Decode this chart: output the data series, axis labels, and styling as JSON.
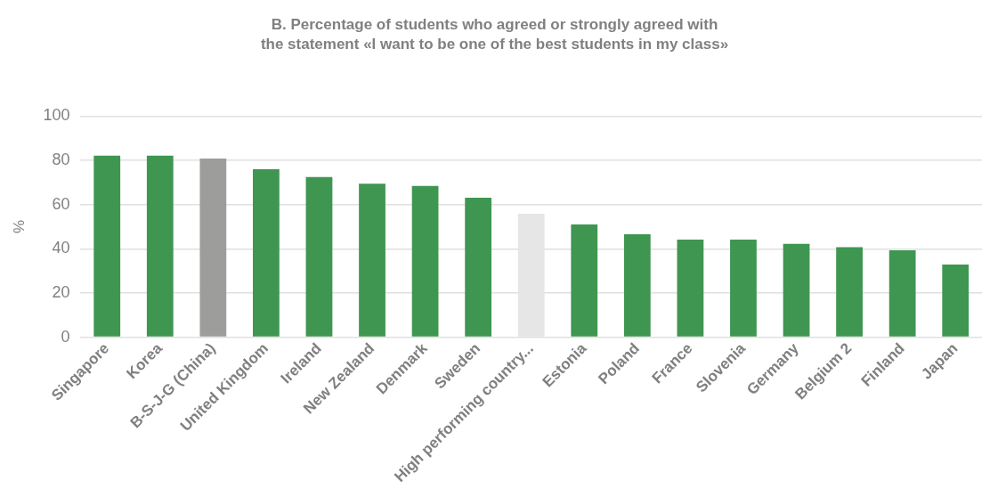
{
  "chart_data": {
    "type": "bar",
    "title": "B. Percentage of students who agreed or strongly agreed with\nthe statement «I want to be one of the best students in my class»",
    "ylabel": "%",
    "categories": [
      "Singapore",
      "Korea",
      "B-S-J-G (China)",
      "United Kingdom",
      "Ireland",
      "New Zealand",
      "Denmark",
      "Sweden",
      "High performing country...",
      "Estonia",
      "Poland",
      "France",
      "Slovenia",
      "Germany",
      "Belgium 2",
      "Finland",
      "Japan"
    ],
    "values": [
      82.2,
      82.2,
      80.8,
      76,
      72.5,
      69.5,
      68.5,
      63.1,
      55.9,
      51,
      46.6,
      44.2,
      44.2,
      42.2,
      40.7,
      39.3,
      32.9
    ],
    "colors": [
      "#3f9651",
      "#3f9651",
      "#9d9d9c",
      "#3f9651",
      "#3f9651",
      "#3f9651",
      "#3f9651",
      "#3f9651",
      "#e6e6e6",
      "#3f9651",
      "#3f9651",
      "#3f9651",
      "#3f9651",
      "#3f9651",
      "#3f9651",
      "#3f9651",
      "#3f9651"
    ],
    "ylim": [
      0,
      100
    ],
    "yticks": [
      0,
      20,
      40,
      60,
      80,
      100
    ],
    "grid": "y"
  }
}
